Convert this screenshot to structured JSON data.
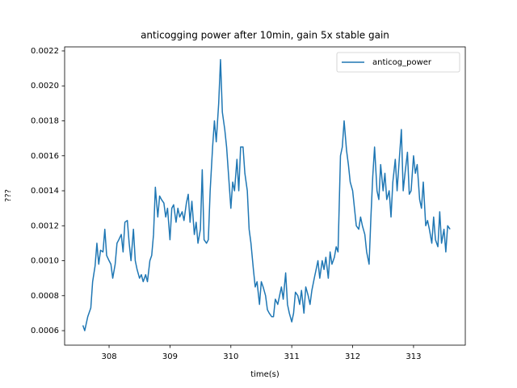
{
  "chart_data": {
    "type": "line",
    "title": "anticogging power after 10min, gain 5x stable gain",
    "xlabel": "time(s)",
    "ylabel": "???",
    "xlim": [
      307.27,
      313.85
    ],
    "xticks": [
      308,
      309,
      310,
      311,
      312,
      313
    ],
    "ylim": [
      0.000517,
      0.002223
    ],
    "yticks": [
      0.0006,
      0.0008,
      {
        "value": 0.001,
        "label": "0.0010"
      },
      0.0012,
      0.0014,
      0.0016,
      0.0018,
      {
        "value": 0.002,
        "label": "0.0020"
      },
      0.0022
    ],
    "legend": "upper right",
    "x": [
      307.57,
      307.6,
      307.65,
      307.7,
      307.73,
      307.77,
      307.8,
      307.83,
      307.86,
      307.9,
      307.93,
      307.96,
      308.0,
      308.03,
      308.06,
      308.1,
      308.13,
      308.16,
      308.2,
      308.23,
      308.26,
      308.3,
      308.33,
      308.36,
      308.4,
      308.43,
      308.46,
      308.5,
      308.53,
      308.56,
      308.6,
      308.63,
      308.67,
      308.7,
      308.73,
      308.76,
      308.8,
      308.83,
      308.86,
      308.9,
      308.93,
      308.96,
      309.0,
      309.03,
      309.06,
      309.1,
      309.13,
      309.16,
      309.2,
      309.23,
      309.27,
      309.3,
      309.33,
      309.36,
      309.4,
      309.43,
      309.46,
      309.5,
      309.53,
      309.56,
      309.6,
      309.63,
      309.66,
      309.7,
      309.73,
      309.76,
      309.8,
      309.83,
      309.86,
      309.9,
      309.93,
      309.96,
      310.0,
      310.03,
      310.06,
      310.1,
      310.13,
      310.16,
      310.2,
      310.23,
      310.27,
      310.3,
      310.33,
      310.37,
      310.4,
      310.43,
      310.47,
      310.5,
      310.53,
      310.57,
      310.6,
      310.63,
      310.67,
      310.7,
      310.73,
      310.77,
      310.8,
      310.83,
      310.86,
      310.9,
      310.93,
      310.96,
      311.0,
      311.03,
      311.06,
      311.1,
      311.13,
      311.16,
      311.2,
      311.23,
      311.27,
      311.3,
      311.33,
      311.37,
      311.4,
      311.43,
      311.46,
      311.5,
      311.53,
      311.56,
      311.6,
      311.63,
      311.66,
      311.7,
      311.73,
      311.76,
      311.8,
      311.83,
      311.86,
      311.9,
      311.93,
      311.96,
      312.0,
      312.03,
      312.06,
      312.1,
      312.13,
      312.16,
      312.2,
      312.23,
      312.27,
      312.3,
      312.33,
      312.36,
      312.4,
      312.43,
      312.46,
      312.5,
      312.53,
      312.56,
      312.6,
      312.63,
      312.66,
      312.7,
      312.73,
      312.77,
      312.8,
      312.83,
      312.86,
      312.9,
      312.93,
      312.96,
      313.0,
      313.03,
      313.06,
      313.1,
      313.13,
      313.16,
      313.2,
      313.23,
      313.26,
      313.3,
      313.33,
      313.36,
      313.4,
      313.43,
      313.46,
      313.5,
      313.53,
      313.56,
      313.6
    ],
    "series": [
      {
        "name": "anticog_power",
        "color": "#1f77b4",
        "values": [
          0.00063,
          0.0006,
          0.00068,
          0.00073,
          0.00088,
          0.00097,
          0.0011,
          0.00098,
          0.00106,
          0.00105,
          0.00118,
          0.00103,
          0.001,
          0.00098,
          0.0009,
          0.00098,
          0.0011,
          0.00112,
          0.00115,
          0.00105,
          0.00122,
          0.00123,
          0.0011,
          0.001,
          0.00118,
          0.001,
          0.00095,
          0.0009,
          0.00092,
          0.00088,
          0.00092,
          0.00088,
          0.001,
          0.00103,
          0.00115,
          0.00142,
          0.00125,
          0.00137,
          0.00135,
          0.00133,
          0.00125,
          0.0013,
          0.00112,
          0.0013,
          0.00132,
          0.00122,
          0.0013,
          0.00125,
          0.00128,
          0.00123,
          0.00133,
          0.00138,
          0.00122,
          0.00134,
          0.00115,
          0.00122,
          0.0011,
          0.00118,
          0.00152,
          0.00112,
          0.0011,
          0.00112,
          0.0014,
          0.00165,
          0.0018,
          0.00168,
          0.0019,
          0.00215,
          0.00185,
          0.00175,
          0.00165,
          0.0015,
          0.0013,
          0.00145,
          0.0014,
          0.00158,
          0.0014,
          0.00165,
          0.00165,
          0.0015,
          0.0014,
          0.00118,
          0.0011,
          0.00095,
          0.00085,
          0.00088,
          0.00075,
          0.00088,
          0.00085,
          0.0008,
          0.00072,
          0.0007,
          0.00068,
          0.00068,
          0.00078,
          0.00075,
          0.0008,
          0.00085,
          0.00078,
          0.00093,
          0.00075,
          0.0007,
          0.00065,
          0.0007,
          0.00082,
          0.0008,
          0.00075,
          0.00083,
          0.0007,
          0.00085,
          0.0008,
          0.00075,
          0.00083,
          0.0009,
          0.00095,
          0.001,
          0.0009,
          0.001,
          0.00095,
          0.00102,
          0.0009,
          0.00105,
          0.00098,
          0.00102,
          0.00108,
          0.00105,
          0.0016,
          0.00165,
          0.0018,
          0.00163,
          0.00155,
          0.00145,
          0.0014,
          0.0013,
          0.0012,
          0.00118,
          0.00125,
          0.0012,
          0.00115,
          0.00105,
          0.00098,
          0.00125,
          0.00148,
          0.00165,
          0.0014,
          0.00135,
          0.00155,
          0.0014,
          0.0015,
          0.00135,
          0.0014,
          0.00125,
          0.00145,
          0.00158,
          0.0014,
          0.0016,
          0.00175,
          0.0014,
          0.0015,
          0.00162,
          0.00138,
          0.0014,
          0.0016,
          0.0015,
          0.00155,
          0.00135,
          0.0013,
          0.00145,
          0.0012,
          0.00123,
          0.00118,
          0.0011,
          0.00125,
          0.00112,
          0.00108,
          0.00128,
          0.0011,
          0.00118,
          0.00105,
          0.0012,
          0.00118
        ]
      }
    ]
  }
}
